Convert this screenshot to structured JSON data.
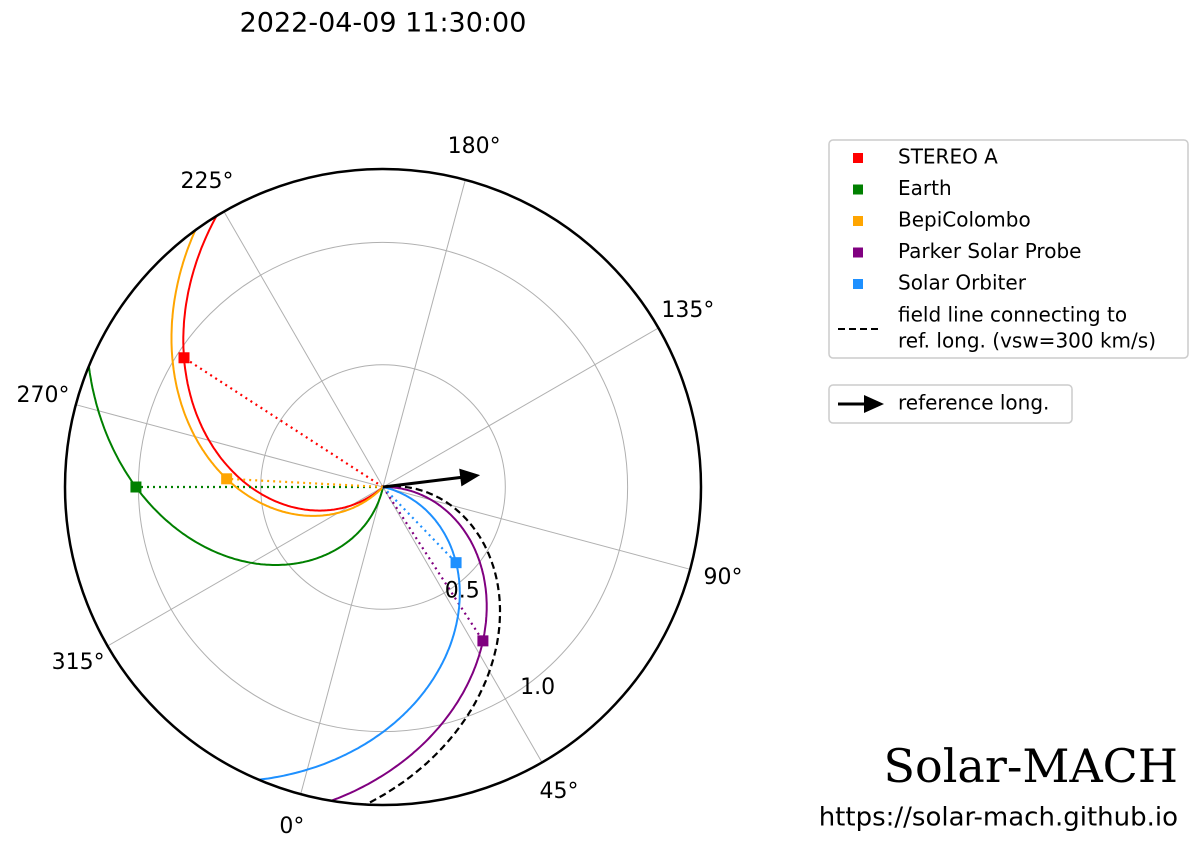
{
  "chart_data": {
    "type": "polar",
    "title": "2022-04-09 11:30:00",
    "rlim": [
      0,
      1.3
    ],
    "rticks": [
      0.5,
      {
        "value": 1,
        "label": "1.0"
      }
    ],
    "thetaticks": [
      {
        "value": 0,
        "label": "0°"
      },
      {
        "value": 45,
        "label": "45°"
      },
      {
        "value": 90,
        "label": "90°"
      },
      {
        "value": 135,
        "label": "135°"
      },
      {
        "value": 180,
        "label": "180°"
      },
      {
        "value": 225,
        "label": "225°"
      },
      {
        "value": 270,
        "label": "270°"
      },
      {
        "value": 315,
        "label": "315°"
      }
    ],
    "grid": true,
    "series": [
      {
        "name": "STEREO A",
        "color": "#ff0000",
        "r": 0.97,
        "lon": 252
      },
      {
        "name": "Earth",
        "color": "#008000",
        "r": 1.01,
        "lon": 285
      },
      {
        "name": "BepiColombo",
        "color": "#ffa500",
        "r": 0.64,
        "lon": 282
      },
      {
        "name": "Parker Solar Probe",
        "color": "#800080",
        "r": 0.75,
        "lon": 48
      },
      {
        "name": "Solar Orbiter",
        "color": "#1e90ff",
        "r": 0.43,
        "lon": 59
      }
    ],
    "field_line_label": [
      "field line connecting to",
      "ref. long. (vsw=300 km/s)"
    ],
    "reference": {
      "label": "reference long.",
      "lon": 112
    },
    "watermark": "Solar-MACH",
    "url": "https://solar-mach.github.io"
  }
}
